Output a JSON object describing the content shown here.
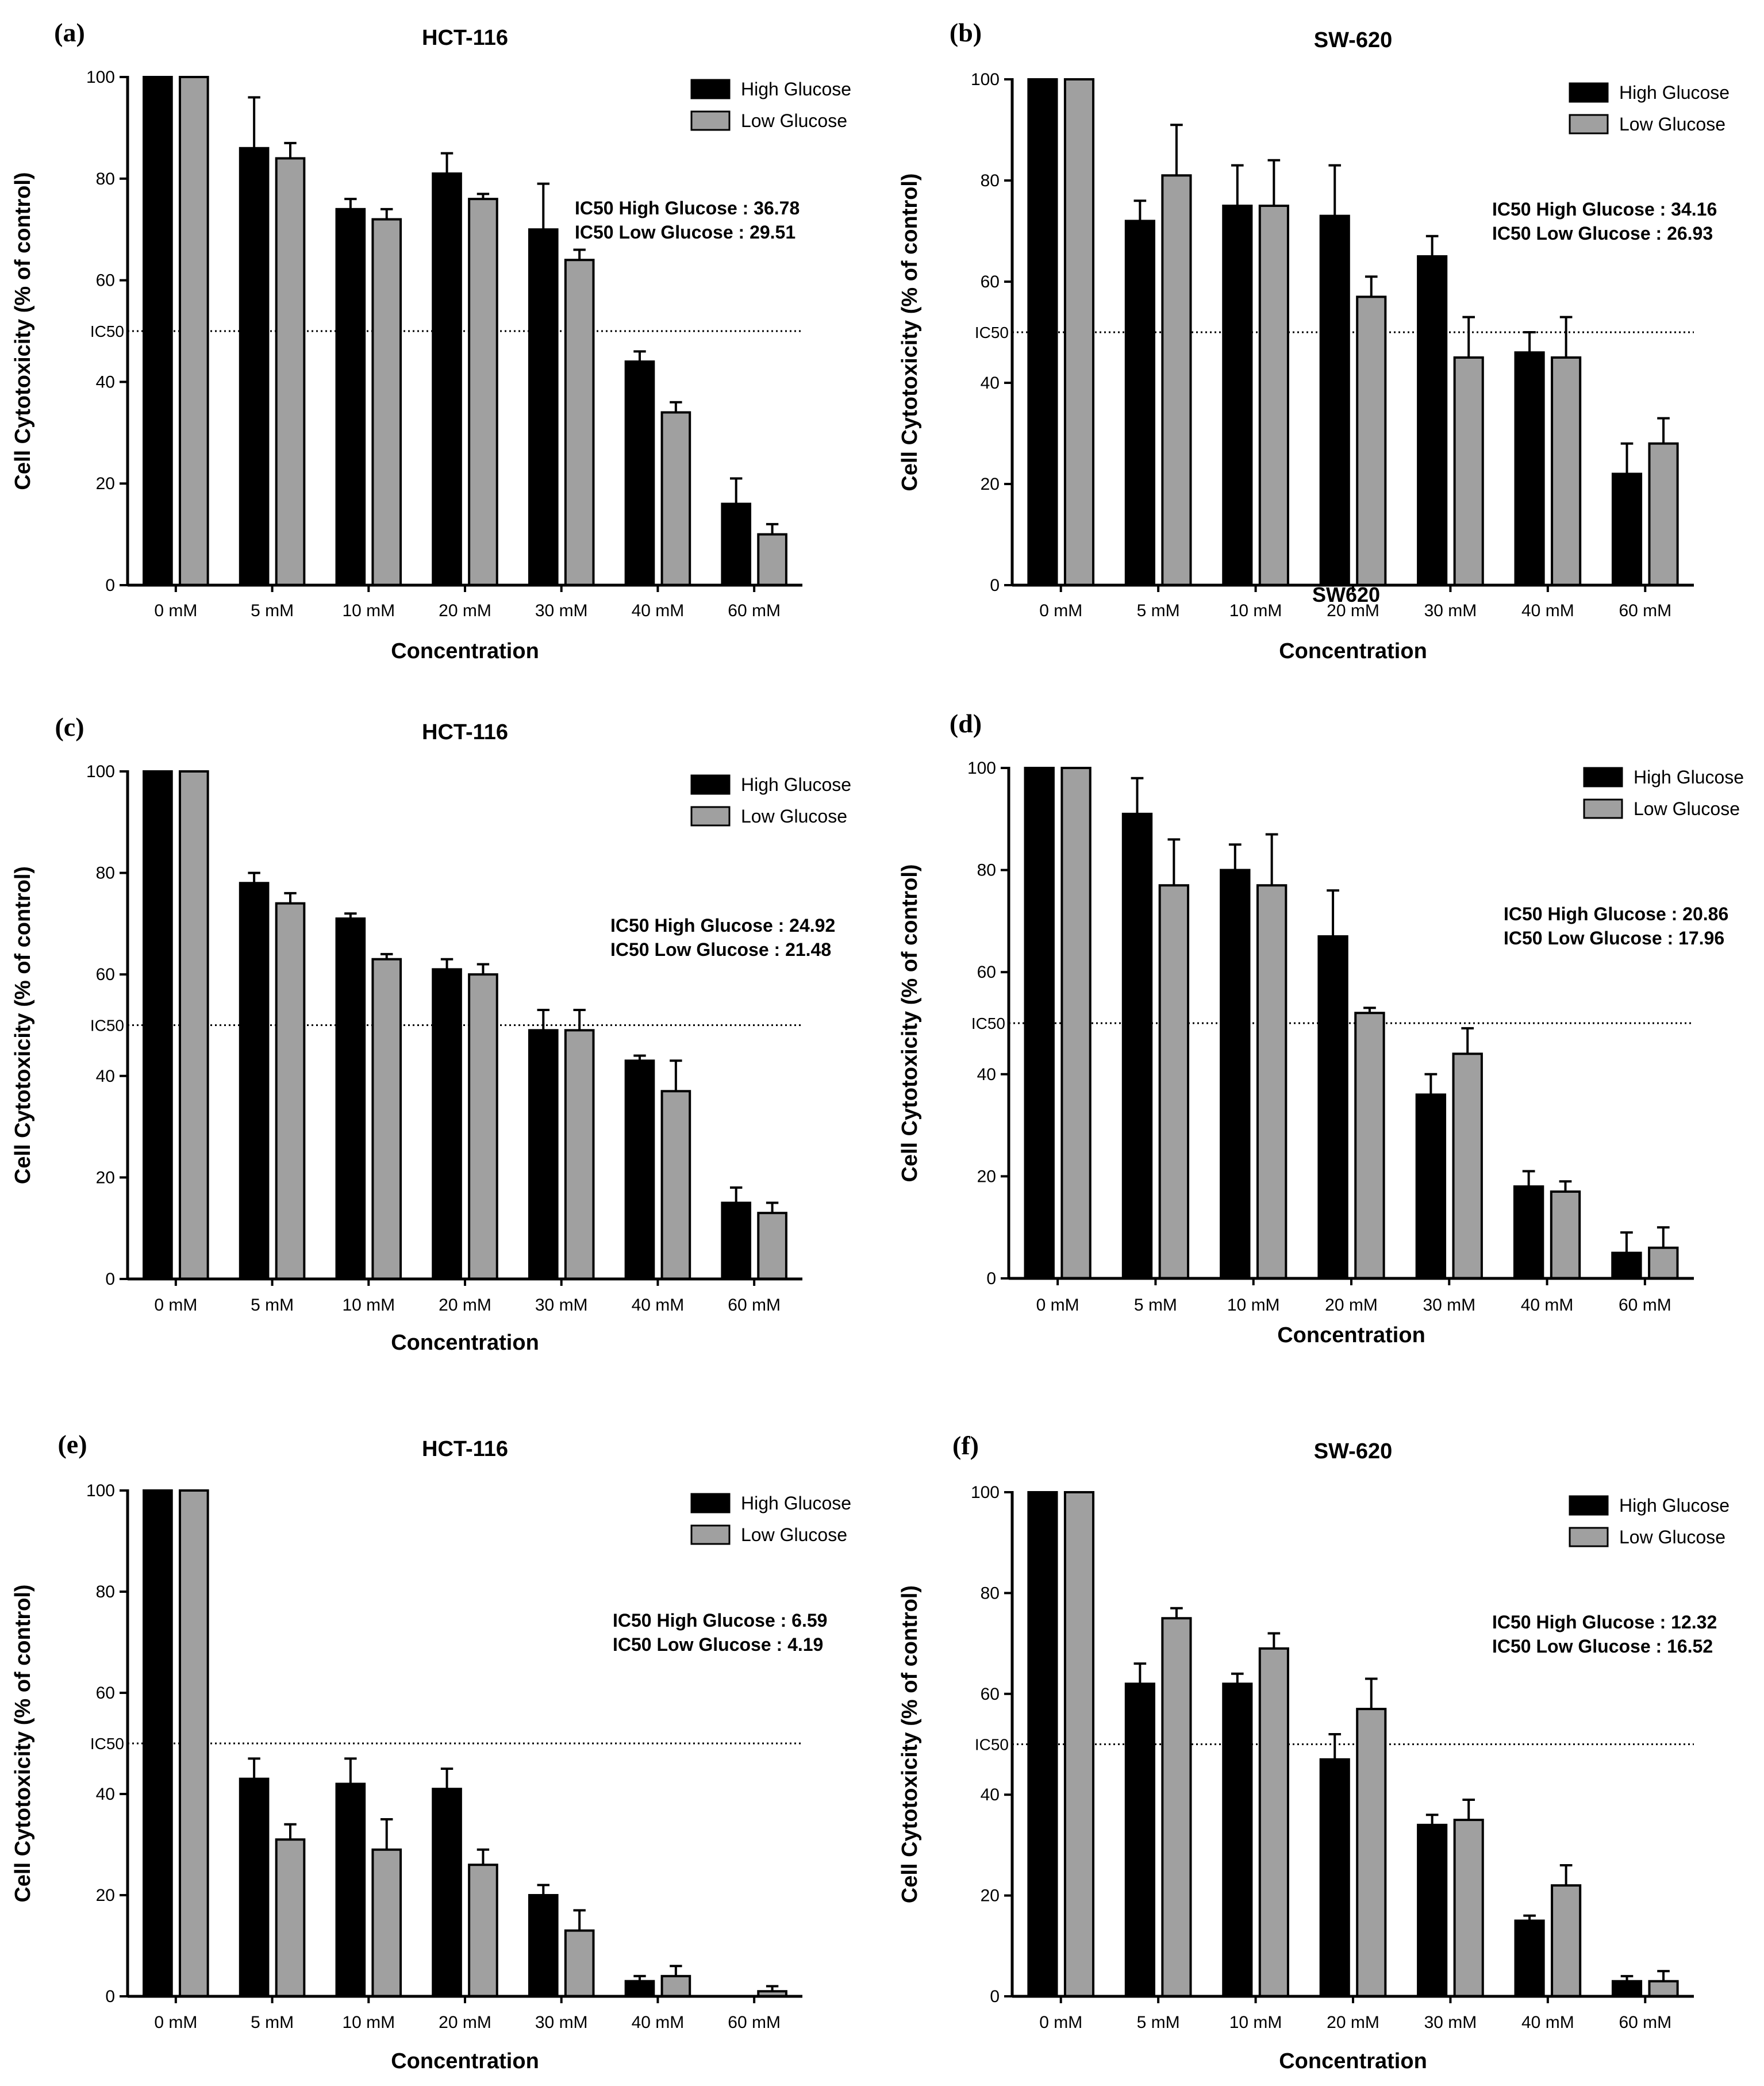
{
  "panels": [
    {
      "letter": "(a)",
      "legend": [
        "High Glucose",
        "Low Glucose"
      ],
      "annotations": [
        "IC50 High Glucose : 36.78",
        "IC50 Low Glucose : 29.51"
      ],
      "ref_label": "IC50"
    },
    {
      "letter": "(b)",
      "legend": [
        "High Glucose",
        "Low Glucose"
      ],
      "annotations": [
        "IC50 High Glucose : 34.16",
        "IC50 Low Glucose : 26.93"
      ],
      "ref_label": "IC50"
    },
    {
      "letter": "(c)",
      "legend": [
        "High Glucose",
        "Low Glucose"
      ],
      "annotations": [
        "IC50 High Glucose : 24.92",
        "IC50 Low Glucose : 21.48"
      ],
      "ref_label": "IC50"
    },
    {
      "letter": "(d)",
      "legend": [
        "High Glucose",
        "Low Glucose"
      ],
      "annotations": [
        "IC50 High Glucose : 20.86",
        "IC50 Low Glucose : 17.96"
      ],
      "ref_label": "IC50"
    },
    {
      "letter": "(e)",
      "legend": [
        "High Glucose",
        "Low Glucose"
      ],
      "annotations": [
        "IC50 High Glucose : 6.59",
        "IC50 Low Glucose : 4.19"
      ],
      "ref_label": "IC50"
    },
    {
      "letter": "(f)",
      "legend": [
        "High Glucose",
        "Low Glucose"
      ],
      "annotations": [
        "IC50 High Glucose : 12.32",
        "IC50 Low Glucose : 16.52"
      ],
      "ref_label": "IC50"
    }
  ],
  "stray_label": "SW620",
  "colors": {
    "high_glucose": "#000000",
    "low_glucose": "#a0a0a0",
    "axis": "#000000"
  },
  "chart_data": [
    {
      "type": "bar",
      "title": "HCT-116",
      "xlabel": "Concentration",
      "ylabel": "Cell Cytotoxicity (% of control)",
      "ylim": [
        0,
        100
      ],
      "yticks": [
        0,
        20,
        40,
        60,
        80,
        100
      ],
      "reference_line": 50,
      "grid": false,
      "legend_position": "top-right",
      "categories": [
        "0 mM",
        "5 mM",
        "10 mM",
        "20 mM",
        "30 mM",
        "40 mM",
        "60 mM"
      ],
      "series": [
        {
          "name": "High Glucose",
          "values": [
            100,
            86,
            74,
            81,
            70,
            44,
            16
          ],
          "errors": [
            0,
            10,
            2,
            4,
            9,
            2,
            5
          ]
        },
        {
          "name": "Low Glucose",
          "values": [
            100,
            84,
            72,
            76,
            64,
            34,
            10
          ],
          "errors": [
            0,
            3,
            2,
            1,
            2,
            2,
            2
          ]
        }
      ]
    },
    {
      "type": "bar",
      "title": "SW-620",
      "xlabel": "Concentration",
      "ylabel": "Cell Cytotoxicity (% of control)",
      "ylim": [
        0,
        100
      ],
      "yticks": [
        0,
        20,
        40,
        60,
        80,
        100
      ],
      "reference_line": 50,
      "grid": false,
      "legend_position": "top-right",
      "categories": [
        "0 mM",
        "5 mM",
        "10 mM",
        "20 mM",
        "30 mM",
        "40 mM",
        "60 mM"
      ],
      "series": [
        {
          "name": "High Glucose",
          "values": [
            100,
            72,
            75,
            73,
            65,
            46,
            22
          ],
          "errors": [
            0,
            4,
            8,
            10,
            4,
            4,
            6
          ]
        },
        {
          "name": "Low Glucose",
          "values": [
            100,
            81,
            75,
            57,
            45,
            45,
            28
          ],
          "errors": [
            0,
            10,
            9,
            4,
            8,
            8,
            5
          ]
        }
      ]
    },
    {
      "type": "bar",
      "title": "HCT-116",
      "xlabel": "Concentration",
      "ylabel": "Cell Cytotoxicity (% of control)",
      "ylim": [
        0,
        100
      ],
      "yticks": [
        0,
        20,
        40,
        60,
        80,
        100
      ],
      "reference_line": 50,
      "grid": false,
      "legend_position": "top-right",
      "categories": [
        "0 mM",
        "5 mM",
        "10 mM",
        "20 mM",
        "30 mM",
        "40 mM",
        "60 mM"
      ],
      "series": [
        {
          "name": "High Glucose",
          "values": [
            100,
            78,
            71,
            61,
            49,
            43,
            15
          ],
          "errors": [
            0,
            2,
            1,
            2,
            4,
            1,
            3
          ]
        },
        {
          "name": "Low Glucose",
          "values": [
            100,
            74,
            63,
            60,
            49,
            37,
            13
          ],
          "errors": [
            0,
            2,
            1,
            2,
            4,
            6,
            2
          ]
        }
      ]
    },
    {
      "type": "bar",
      "title": "",
      "xlabel": "Concentration",
      "ylabel": "Cell Cytotoxicity (% of control)",
      "ylim": [
        0,
        100
      ],
      "yticks": [
        0,
        20,
        40,
        60,
        80,
        100
      ],
      "reference_line": 50,
      "grid": false,
      "legend_position": "top-right",
      "categories": [
        "0 mM",
        "5 mM",
        "10 mM",
        "20 mM",
        "30 mM",
        "40 mM",
        "60 mM"
      ],
      "series": [
        {
          "name": "High Glucose",
          "values": [
            100,
            91,
            80,
            67,
            36,
            18,
            5
          ],
          "errors": [
            0,
            7,
            5,
            9,
            4,
            3,
            4
          ]
        },
        {
          "name": "Low Glucose",
          "values": [
            100,
            77,
            77,
            52,
            44,
            17,
            6
          ],
          "errors": [
            0,
            9,
            10,
            1,
            5,
            2,
            4
          ]
        }
      ]
    },
    {
      "type": "bar",
      "title": "HCT-116",
      "xlabel": "Concentration",
      "ylabel": "Cell Cytotoxicity (% of control)",
      "ylim": [
        0,
        100
      ],
      "yticks": [
        0,
        20,
        40,
        60,
        80,
        100
      ],
      "reference_line": 50,
      "grid": false,
      "legend_position": "top-right",
      "categories": [
        "0 mM",
        "5 mM",
        "10 mM",
        "20 mM",
        "30 mM",
        "40 mM",
        "60 mM"
      ],
      "series": [
        {
          "name": "High Glucose",
          "values": [
            100,
            43,
            42,
            41,
            20,
            3,
            0
          ],
          "errors": [
            0,
            4,
            5,
            4,
            2,
            1,
            0
          ]
        },
        {
          "name": "Low Glucose",
          "values": [
            100,
            31,
            29,
            26,
            13,
            4,
            1
          ],
          "errors": [
            0,
            3,
            6,
            3,
            4,
            2,
            1
          ]
        }
      ]
    },
    {
      "type": "bar",
      "title": "SW-620",
      "xlabel": "Concentration",
      "ylabel": "Cell Cytotoxicity (% of control)",
      "ylim": [
        0,
        100
      ],
      "yticks": [
        0,
        20,
        40,
        60,
        80,
        100
      ],
      "reference_line": 50,
      "grid": false,
      "legend_position": "top-right",
      "categories": [
        "0 mM",
        "5 mM",
        "10 mM",
        "20 mM",
        "30 mM",
        "40 mM",
        "60 mM"
      ],
      "series": [
        {
          "name": "High Glucose",
          "values": [
            100,
            62,
            62,
            47,
            34,
            15,
            3
          ],
          "errors": [
            0,
            4,
            2,
            5,
            2,
            1,
            1
          ]
        },
        {
          "name": "Low Glucose",
          "values": [
            100,
            75,
            69,
            57,
            35,
            22,
            3
          ],
          "errors": [
            0,
            2,
            3,
            6,
            4,
            4,
            2
          ]
        }
      ]
    }
  ]
}
